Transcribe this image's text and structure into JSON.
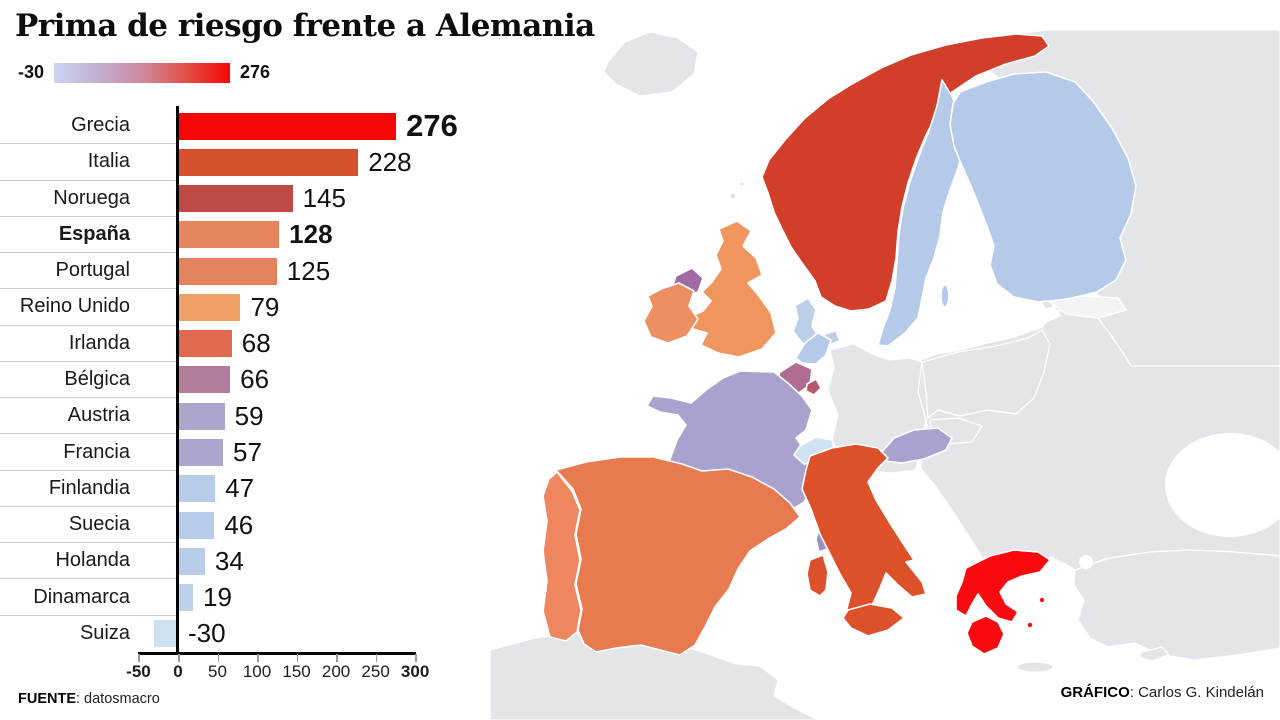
{
  "title": "Prima de riesgo frente a Alemania",
  "legend": {
    "min_label": "-30",
    "max_label": "276",
    "gradient_stops": [
      "#ccd6f0",
      "#c2aed2",
      "#cd8a9e",
      "#e25046",
      "#f70606"
    ]
  },
  "chart_data": {
    "type": "bar",
    "orientation": "horizontal",
    "title": "Prima de riesgo frente a Alemania",
    "xlim": [
      -50,
      300
    ],
    "x_ticks": [
      -50,
      0,
      50,
      100,
      150,
      200,
      250,
      300
    ],
    "bold_ticks": [
      -50,
      0,
      300
    ],
    "grid": false,
    "categories": [
      "Grecia",
      "Italia",
      "Noruega",
      "España",
      "Portugal",
      "Reino Unido",
      "Irlanda",
      "Bélgica",
      "Austria",
      "Francia",
      "Finlandia",
      "Suecia",
      "Holanda",
      "Dinamarca",
      "Suiza"
    ],
    "values": [
      276,
      228,
      145,
      128,
      125,
      79,
      68,
      66,
      59,
      57,
      47,
      46,
      34,
      19,
      -30
    ],
    "rows": [
      {
        "label": "Grecia",
        "value": 276,
        "color": "#f70808",
        "value_bold": true,
        "value_large": true
      },
      {
        "label": "Italia",
        "value": 228,
        "color": "#d5512d"
      },
      {
        "label": "Noruega",
        "value": 145,
        "color": "#bd4a44"
      },
      {
        "label": "España",
        "value": 128,
        "color": "#e5845d",
        "label_bold": true,
        "value_bold": true
      },
      {
        "label": "Portugal",
        "value": 125,
        "color": "#e3825c"
      },
      {
        "label": "Reino Unido",
        "value": 79,
        "color": "#efa066"
      },
      {
        "label": "Irlanda",
        "value": 68,
        "color": "#e06a50"
      },
      {
        "label": "Bélgica",
        "value": 66,
        "color": "#b17d9b"
      },
      {
        "label": "Austria",
        "value": 59,
        "color": "#aba6ce"
      },
      {
        "label": "Francia",
        "value": 57,
        "color": "#aba6ce"
      },
      {
        "label": "Finlandia",
        "value": 47,
        "color": "#b6cce8"
      },
      {
        "label": "Suecia",
        "value": 46,
        "color": "#b6cce8"
      },
      {
        "label": "Holanda",
        "value": 34,
        "color": "#b7cde9"
      },
      {
        "label": "Dinamarca",
        "value": 19,
        "color": "#bdd1ea"
      },
      {
        "label": "Suiza",
        "value": -30,
        "color": "#cfe0f1"
      }
    ]
  },
  "footer": {
    "source_label": "FUENTE",
    "source_rest": ": datosmacro",
    "credit_label": "GRÁFICO",
    "credit_rest": ": Carlos G. Kindelán"
  },
  "map": {
    "sea_color": "#ffffff",
    "no_data_color": "#e3e5e9",
    "countries": {
      "greece": {
        "name": "Grecia",
        "color": "#fa0a0e"
      },
      "italy": {
        "name": "Italia",
        "color": "#dc5129"
      },
      "norway": {
        "name": "Noruega",
        "color": "#d13e2a"
      },
      "spain": {
        "name": "España",
        "color": "#e87a50"
      },
      "portugal": {
        "name": "Portugal",
        "color": "#ee8760"
      },
      "uk": {
        "name": "Reino Unido",
        "color": "#f0955e"
      },
      "ireland": {
        "name": "Irlanda",
        "color": "#ee8f61"
      },
      "northern_ireland": {
        "name": "Irlanda del Norte",
        "color": "#a06ba5"
      },
      "belgium": {
        "name": "Bélgica",
        "color": "#b06d92"
      },
      "luxembourg": {
        "name": "Luxemburgo",
        "color": "#b5566d"
      },
      "austria": {
        "name": "Austria",
        "color": "#a9a2ce"
      },
      "france": {
        "name": "Francia",
        "color": "#a9a2ce"
      },
      "corsica": {
        "name": "Córcega",
        "color": "#9e90c4"
      },
      "finland": {
        "name": "Finlandia",
        "color": "#b5c9e8"
      },
      "sweden": {
        "name": "Suecia",
        "color": "#b5c9e8"
      },
      "netherlands": {
        "name": "Holanda",
        "color": "#b5c9e8"
      },
      "denmark": {
        "name": "Dinamarca",
        "color": "#bccfe9"
      },
      "switzerland": {
        "name": "Suiza",
        "color": "#cfe2f2"
      },
      "estonia": {
        "name": "Estonia",
        "color": "#f2f4f7"
      }
    }
  }
}
